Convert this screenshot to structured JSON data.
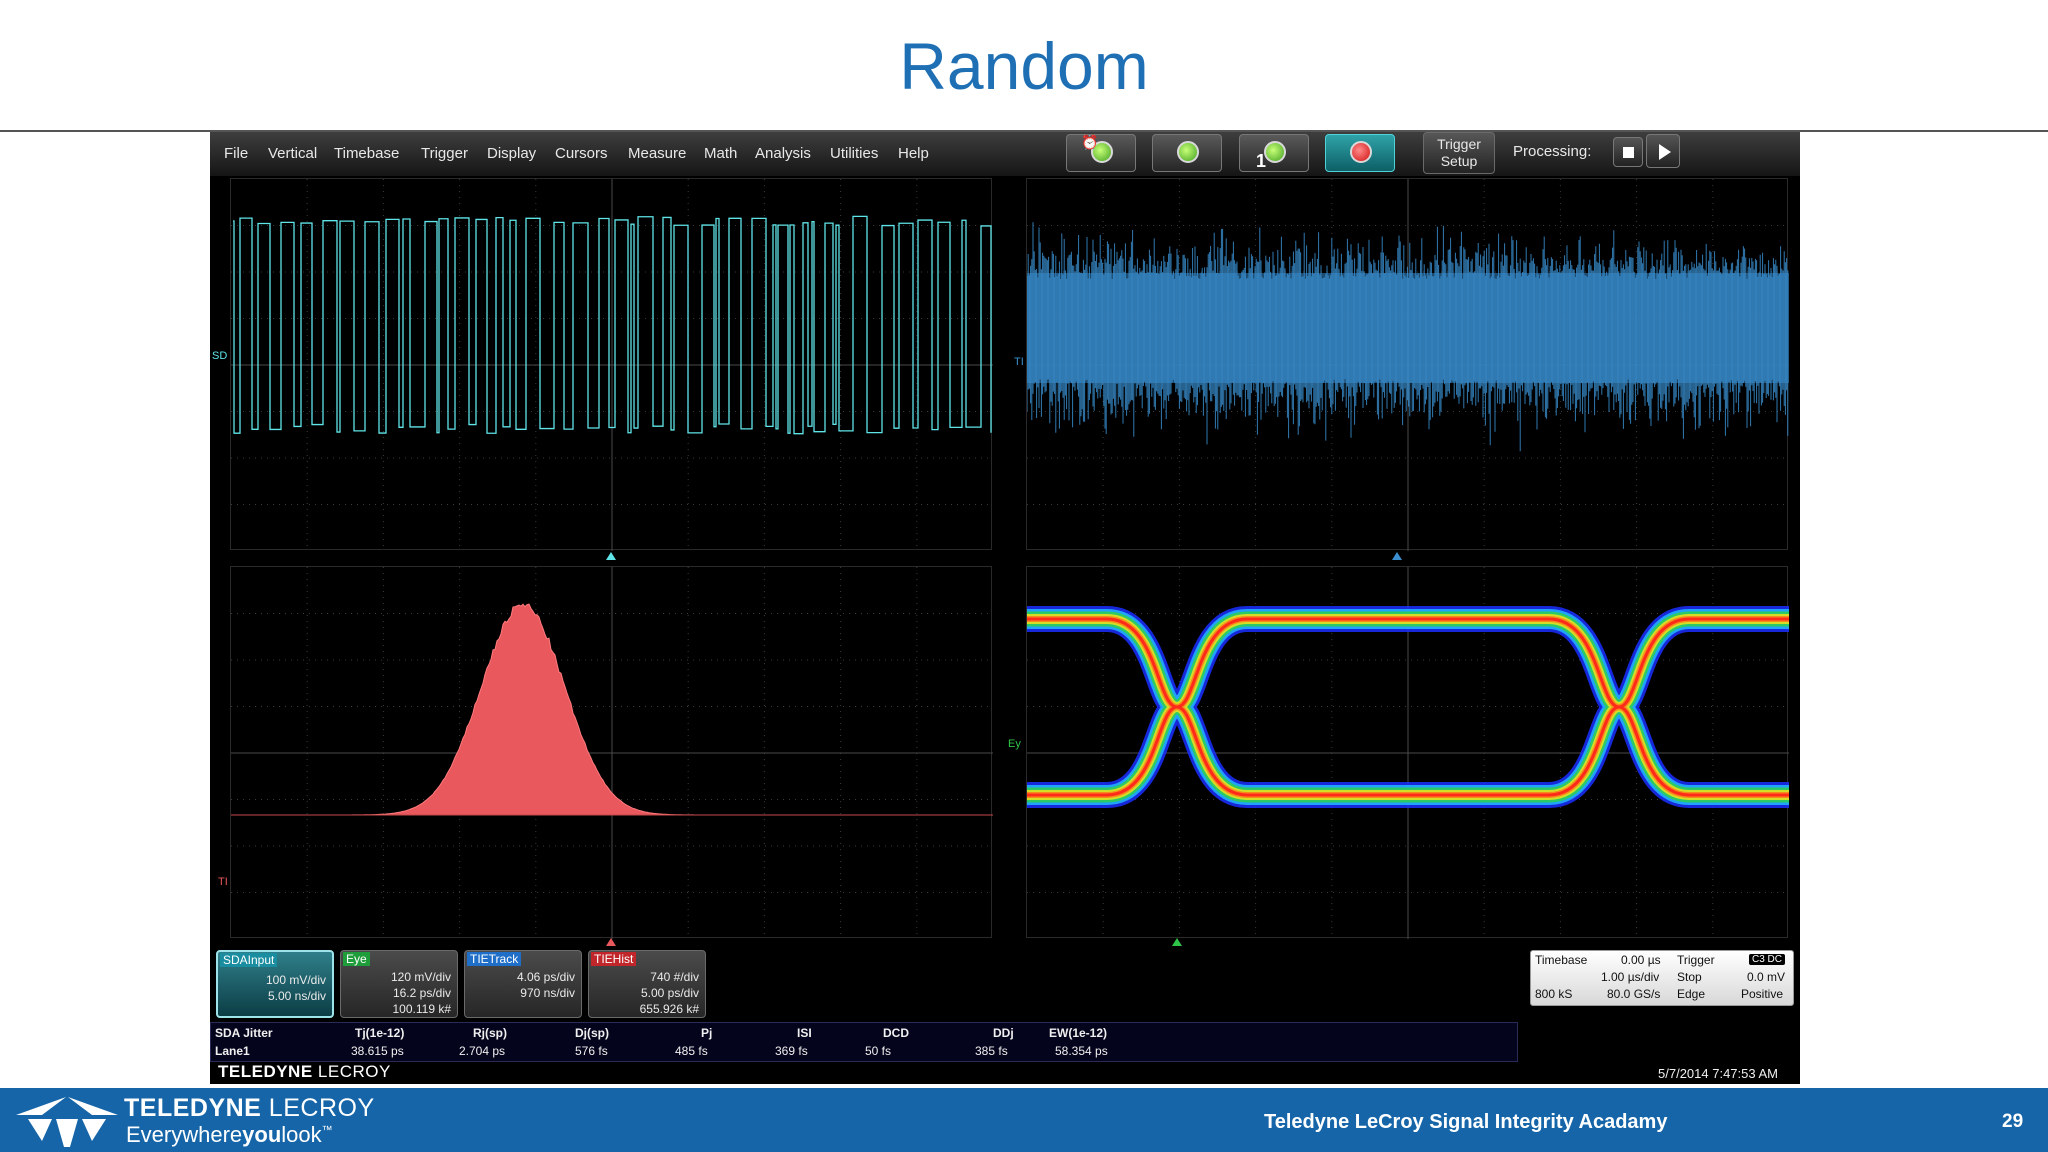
{
  "slide": {
    "title": "Random",
    "page_number": "29",
    "footer_academy": "Teledyne LeCroy Signal Integrity Acadamy",
    "logo_word_bold": "TELEDYNE",
    "logo_word_light": " LECROY",
    "logo_tagline_a": "Everywhere",
    "logo_tagline_b": "you",
    "logo_tagline_c": "look",
    "logo_tm": "™"
  },
  "scope": {
    "menu": [
      "File",
      "Vertical",
      "Timebase",
      "Trigger",
      "Display",
      "Cursors",
      "Measure",
      "Math",
      "Analysis",
      "Utilities",
      "Help"
    ],
    "toolbar": {
      "single_sub": "1",
      "trigger_setup_line1": "Trigger",
      "trigger_setup_line2": "Setup",
      "processing_label": "Processing:"
    },
    "traces": {
      "top_left_label": "SD",
      "top_right_label": "TI",
      "bottom_left_label": "TI",
      "bottom_right_label": "Ey"
    },
    "descriptors": [
      {
        "name": "SDAInput",
        "line1": "100 mV/div",
        "line2": "5.00 ns/div",
        "line3": "",
        "tag_color": "#1a8ea0"
      },
      {
        "name": "Eye",
        "line1": "120 mV/div",
        "line2": "16.2 ps/div",
        "line3": "100.119 k#",
        "tag_color": "#1f9d3a"
      },
      {
        "name": "TIETrack",
        "line1": "4.06 ps/div",
        "line2": "970 ns/div",
        "line3": "",
        "tag_color": "#1f6fc8"
      },
      {
        "name": "TIEHist",
        "line1": "740 #/div",
        "line2": "5.00 ps/div",
        "line3": "655.926 k#",
        "tag_color": "#c0262a"
      }
    ],
    "timebase": {
      "label": "Timebase",
      "delay": "0.00 µs",
      "per_div": "1.00 µs/div",
      "samples": "800 kS",
      "rate": "80.0 GS/s"
    },
    "trigger": {
      "label": "Trigger",
      "badge": "C3 DC",
      "mode": "Stop",
      "level": "0.0 mV",
      "type": "Edge",
      "slope": "Positive"
    },
    "jitter_table": {
      "headers": [
        "SDA Jitter",
        "Tj(1e-12)",
        "Rj(sp)",
        "Dj(sp)",
        "Pj",
        "ISI",
        "DCD",
        "DDj",
        "EW(1e-12)"
      ],
      "row": [
        "Lane1",
        "38.615 ps",
        "2.704 ps",
        "576 fs",
        "485 fs",
        "369 fs",
        "50 fs",
        "385 fs",
        "58.354 ps"
      ]
    },
    "brand_bold": "TELEDYNE",
    "brand_light": " LECROY",
    "datetime": "5/7/2014 7:47:53 AM",
    "colors": {
      "sda_trace": "#5fe5e8",
      "tie_track": "#3a8fd0",
      "histogram": "#e8585c",
      "grid": "#3a3a3a"
    }
  }
}
